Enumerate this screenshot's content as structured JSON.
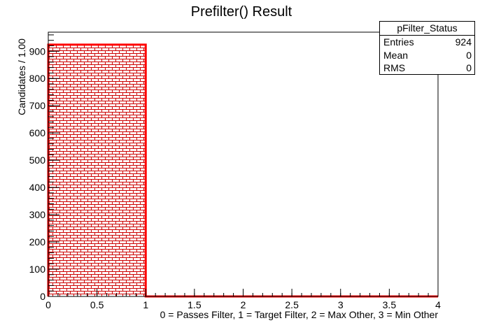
{
  "chart_data": {
    "type": "bar",
    "title": "Prefilter() Result",
    "xlabel": "0 = Passes Filter, 1 = Target Filter, 2 = Max Other, 3 = Min Other",
    "ylabel": "Candidates / 1.00",
    "xlim": [
      0,
      4
    ],
    "ylim": [
      0,
      970
    ],
    "x_ticks": [
      "0",
      "0.5",
      "1",
      "1.5",
      "2",
      "2.5",
      "3",
      "3.5",
      "4"
    ],
    "y_ticks": [
      "0",
      "100",
      "200",
      "300",
      "400",
      "500",
      "600",
      "700",
      "800",
      "900"
    ],
    "bins": [
      {
        "low": 0,
        "high": 1,
        "value": 924
      },
      {
        "low": 1,
        "high": 2,
        "value": 0
      },
      {
        "low": 2,
        "high": 3,
        "value": 0
      },
      {
        "low": 3,
        "high": 4,
        "value": 0
      }
    ],
    "grid": false,
    "fill_style": "brick-hatch",
    "colors": {
      "line": "#ff0000",
      "hatch": "#cc0000",
      "axis": "#000000"
    }
  },
  "stats_box": {
    "title": "pFilter_Status",
    "rows": [
      {
        "label": "Entries",
        "value": "924"
      },
      {
        "label": "Mean",
        "value": "0"
      },
      {
        "label": "RMS",
        "value": "0"
      }
    ]
  }
}
